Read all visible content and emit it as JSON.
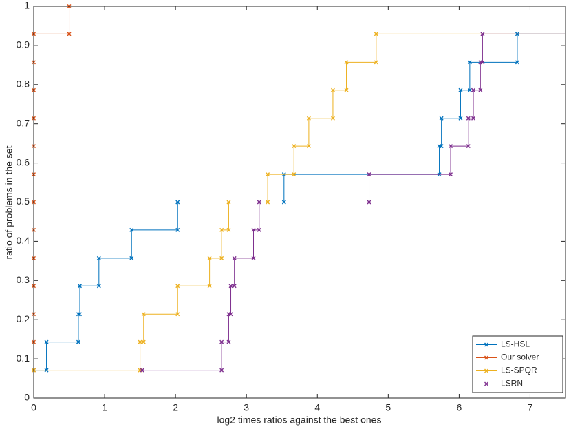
{
  "chart_data": {
    "type": "line",
    "step": true,
    "xlabel": "log2 times ratios against the best ones",
    "ylabel": "ratio of problems in the set",
    "xlim": [
      0,
      7.5
    ],
    "ylim": [
      0,
      1
    ],
    "xticks": [
      0,
      1,
      2,
      3,
      4,
      5,
      6,
      7
    ],
    "yticks": [
      0,
      0.1,
      0.2,
      0.3,
      0.4,
      0.5,
      0.6,
      0.7,
      0.8,
      0.9,
      1
    ],
    "legend": "lower right",
    "series": [
      {
        "name": "LS-HSL",
        "color": "#0072bd",
        "x": [
          0,
          0.18,
          0.18,
          0.63,
          0.63,
          0.65,
          0.65,
          0.92,
          0.92,
          1.38,
          1.38,
          2.03,
          2.03,
          3.53,
          3.53,
          5.72,
          5.72,
          5.75,
          5.75,
          6.02,
          6.02,
          6.15,
          6.15,
          6.82,
          6.82
        ],
        "values": [
          0.071,
          0.071,
          0.143,
          0.143,
          0.214,
          0.214,
          0.286,
          0.286,
          0.357,
          0.357,
          0.429,
          0.429,
          0.5,
          0.5,
          0.571,
          0.571,
          0.643,
          0.643,
          0.714,
          0.714,
          0.786,
          0.786,
          0.857,
          0.857,
          0.929
        ]
      },
      {
        "name": "Our solver",
        "color": "#d95319",
        "x": [
          0,
          0,
          0,
          0,
          0,
          0,
          0,
          0,
          0,
          0,
          0,
          0,
          0,
          0.5,
          0.5
        ],
        "values": [
          0.071,
          0.143,
          0.214,
          0.286,
          0.357,
          0.429,
          0.5,
          0.571,
          0.643,
          0.714,
          0.786,
          0.857,
          0.929,
          0.929,
          1
        ]
      },
      {
        "name": "LS-SPQR",
        "color": "#edb120",
        "x": [
          0,
          1.5,
          1.5,
          1.55,
          1.55,
          2.03,
          2.03,
          2.48,
          2.48,
          2.65,
          2.65,
          2.75,
          2.75,
          3.3,
          3.3,
          3.67,
          3.67,
          3.88,
          3.88,
          4.22,
          4.22,
          4.41,
          4.41,
          4.83,
          4.83
        ],
        "values": [
          0.071,
          0.071,
          0.143,
          0.143,
          0.214,
          0.214,
          0.286,
          0.286,
          0.357,
          0.357,
          0.429,
          0.429,
          0.5,
          0.5,
          0.571,
          0.571,
          0.643,
          0.643,
          0.714,
          0.714,
          0.786,
          0.786,
          0.857,
          0.857,
          0.929
        ]
      },
      {
        "name": "LSRN",
        "color": "#7e2f8e",
        "x": [
          1.53,
          2.65,
          2.65,
          2.75,
          2.75,
          2.78,
          2.78,
          2.83,
          2.83,
          3.1,
          3.1,
          3.18,
          3.18,
          4.73,
          4.73,
          5.88,
          5.88,
          6.13,
          6.13,
          6.2,
          6.2,
          6.3,
          6.3,
          6.33,
          6.33
        ],
        "values": [
          0.071,
          0.071,
          0.143,
          0.143,
          0.214,
          0.214,
          0.286,
          0.286,
          0.357,
          0.357,
          0.429,
          0.429,
          0.5,
          0.5,
          0.571,
          0.571,
          0.643,
          0.643,
          0.714,
          0.714,
          0.786,
          0.786,
          0.857,
          0.857,
          0.929
        ]
      }
    ]
  }
}
